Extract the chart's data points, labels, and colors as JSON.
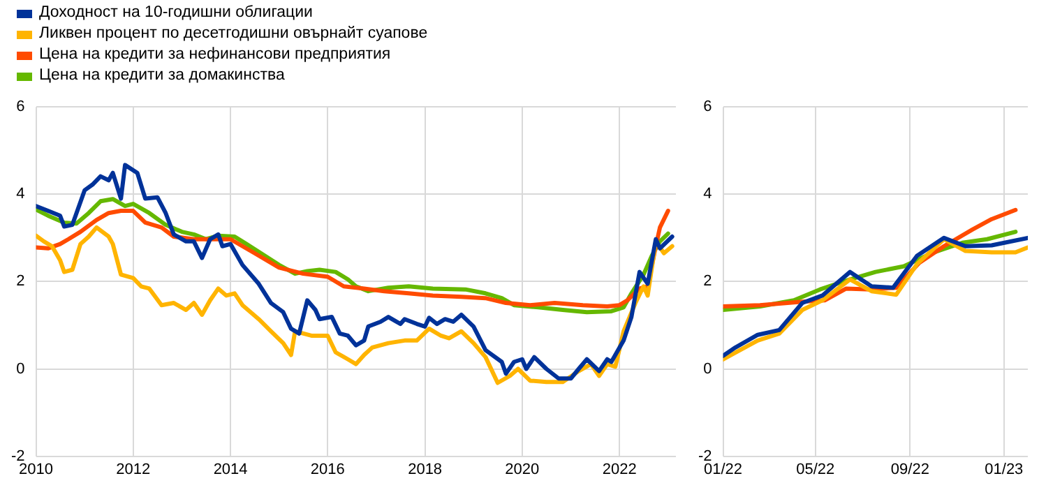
{
  "chart_data": [
    {
      "type": "line",
      "legend": "top left",
      "grid": true,
      "xlim": [
        "2010",
        "2023-03"
      ],
      "xticks": [
        {
          "value": "2010",
          "label": "2010"
        },
        {
          "value": "2012",
          "label": "2012"
        },
        {
          "value": "2014",
          "label": "2014"
        },
        {
          "value": "2016",
          "label": "2016"
        },
        {
          "value": "2018",
          "label": "2018"
        },
        {
          "value": "2020",
          "label": "2020"
        },
        {
          "value": "2022",
          "label": "2022"
        }
      ],
      "ylim": [
        -2,
        6
      ],
      "yticks": [
        -2,
        0,
        2,
        4,
        6
      ],
      "series": [
        {
          "name": "Доходност на 10-годишни облигации",
          "color": "#003299",
          "x": [
            "2010-01",
            "2010-04",
            "2010-07",
            "2010-08",
            "2010-10",
            "2011-01",
            "2011-03",
            "2011-05",
            "2011-07",
            "2011-08",
            "2011-10",
            "2011-11",
            "2012-02",
            "2012-04",
            "2012-07",
            "2012-09",
            "2012-11",
            "2013-02",
            "2013-04",
            "2013-06",
            "2013-08",
            "2013-10",
            "2013-11",
            "2014-01",
            "2014-04",
            "2014-08",
            "2014-11",
            "2015-02",
            "2015-04",
            "2015-06",
            "2015-08",
            "2015-10",
            "2015-11",
            "2016-02",
            "2016-04",
            "2016-06",
            "2016-08",
            "2016-10",
            "2016-11",
            "2017-02",
            "2017-04",
            "2017-06",
            "2017-07",
            "2017-08",
            "2017-11",
            "2018-01",
            "2018-02",
            "2018-04",
            "2018-06",
            "2018-08",
            "2018-10",
            "2019-01",
            "2019-04",
            "2019-08",
            "2019-09",
            "2019-11",
            "2020-01",
            "2020-02",
            "2020-04",
            "2020-07",
            "2020-10",
            "2021-01",
            "2021-03",
            "2021-05",
            "2021-08",
            "2021-10",
            "2021-11",
            "2022-02",
            "2022-04",
            "2022-06",
            "2022-08",
            "2022-10",
            "2022-11",
            "2023-02"
          ],
          "values": [
            3.73,
            3.62,
            3.51,
            3.26,
            3.3,
            4.09,
            4.22,
            4.41,
            4.32,
            4.49,
            3.9,
            4.67,
            4.49,
            3.9,
            3.93,
            3.57,
            3.08,
            2.92,
            2.92,
            2.54,
            2.97,
            3.08,
            2.81,
            2.86,
            2.38,
            1.95,
            1.51,
            1.3,
            0.92,
            0.81,
            1.57,
            1.35,
            1.14,
            1.19,
            0.81,
            0.76,
            0.54,
            0.65,
            0.97,
            1.08,
            1.19,
            1.08,
            1.03,
            1.14,
            1.03,
            0.97,
            1.17,
            1.03,
            1.14,
            1.08,
            1.24,
            0.97,
            0.43,
            0.16,
            -0.11,
            0.16,
            0.22,
            0,
            0.27,
            0,
            -0.22,
            -0.22,
            0,
            0.22,
            -0.05,
            0.22,
            0.16,
            0.65,
            1.19,
            2.22,
            1.95,
            2.97,
            2.76,
            3.03
          ]
        },
        {
          "name": "Ликвен процент по десетгодишни овърнайт суапове",
          "color": "#ffb400",
          "x": [
            "2010-01",
            "2010-03",
            "2010-05",
            "2010-07",
            "2010-08",
            "2010-10",
            "2010-12",
            "2011-02",
            "2011-04",
            "2011-07",
            "2011-08",
            "2011-10",
            "2012-01",
            "2012-03",
            "2012-05",
            "2012-08",
            "2012-11",
            "2013-02",
            "2013-04",
            "2013-06",
            "2013-08",
            "2013-10",
            "2013-12",
            "2014-02",
            "2014-04",
            "2014-08",
            "2014-11",
            "2015-02",
            "2015-04",
            "2015-05",
            "2015-09",
            "2016-01",
            "2016-03",
            "2016-06",
            "2016-08",
            "2016-10",
            "2016-12",
            "2017-04",
            "2017-08",
            "2017-11",
            "2018-02",
            "2018-05",
            "2018-07",
            "2018-10",
            "2019-01",
            "2019-04",
            "2019-07",
            "2019-10",
            "2019-12",
            "2020-03",
            "2020-07",
            "2020-11",
            "2021-03",
            "2021-06",
            "2021-08",
            "2021-10",
            "2021-12",
            "2022-02",
            "2022-05",
            "2022-07",
            "2022-08",
            "2022-10",
            "2022-12",
            "2023-02"
          ],
          "values": [
            3.05,
            2.92,
            2.81,
            2.49,
            2.22,
            2.27,
            2.86,
            3.03,
            3.24,
            3.03,
            2.86,
            2.16,
            2.08,
            1.89,
            1.84,
            1.46,
            1.51,
            1.35,
            1.51,
            1.24,
            1.57,
            1.84,
            1.68,
            1.73,
            1.46,
            1.14,
            0.86,
            0.59,
            0.32,
            0.86,
            0.76,
            0.76,
            0.38,
            0.22,
            0.11,
            0.32,
            0.49,
            0.59,
            0.65,
            0.65,
            0.92,
            0.76,
            0.7,
            0.86,
            0.59,
            0.27,
            -0.32,
            -0.16,
            0,
            -0.27,
            -0.3,
            -0.3,
            -0.05,
            0.11,
            -0.16,
            0.11,
            0.05,
            0.86,
            1.51,
            1.89,
            1.68,
            2.92,
            2.65,
            2.81
          ]
        },
        {
          "name": "Цена на кредити за нефинансови предприятия",
          "color": "#ff4b00",
          "x": [
            "2010-01",
            "2010-04",
            "2010-07",
            "2010-09",
            "2010-12",
            "2011-04",
            "2011-07",
            "2011-10",
            "2012-01",
            "2012-04",
            "2012-08",
            "2012-11",
            "2013-04",
            "2013-09",
            "2014-01",
            "2014-07",
            "2015-01",
            "2015-07",
            "2016-01",
            "2016-05",
            "2016-10",
            "2017-03",
            "2017-09",
            "2018-03",
            "2018-10",
            "2019-04",
            "2019-09",
            "2020-03",
            "2020-09",
            "2021-04",
            "2021-10",
            "2022-01",
            "2022-03",
            "2022-06",
            "2022-08",
            "2022-10",
            "2022-11",
            "2023-01"
          ],
          "values": [
            2.78,
            2.76,
            2.86,
            2.97,
            3.14,
            3.41,
            3.57,
            3.62,
            3.62,
            3.35,
            3.24,
            3.03,
            2.97,
            2.97,
            2.97,
            2.65,
            2.32,
            2.18,
            2.11,
            1.89,
            1.84,
            1.78,
            1.73,
            1.68,
            1.65,
            1.62,
            1.51,
            1.46,
            1.51,
            1.46,
            1.43,
            1.46,
            1.57,
            1.84,
            1.89,
            2.81,
            3.24,
            3.62
          ]
        },
        {
          "name": "Цена на кредити за домакинства",
          "color": "#65b800",
          "x": [
            "2010-01",
            "2010-04",
            "2010-08",
            "2010-11",
            "2011-02",
            "2011-05",
            "2011-08",
            "2011-11",
            "2012-01",
            "2012-05",
            "2012-09",
            "2013-01",
            "2013-04",
            "2013-07",
            "2013-10",
            "2014-02",
            "2014-05",
            "2015-01",
            "2015-05",
            "2015-08",
            "2015-11",
            "2016-03",
            "2016-06",
            "2016-08",
            "2016-11",
            "2017-04",
            "2017-09",
            "2018-03",
            "2018-11",
            "2019-04",
            "2019-08",
            "2019-11",
            "2020-05",
            "2020-11",
            "2021-05",
            "2021-11",
            "2022-02",
            "2022-04",
            "2022-07",
            "2022-09",
            "2022-11",
            "2023-01"
          ],
          "values": [
            3.65,
            3.51,
            3.35,
            3.33,
            3.57,
            3.84,
            3.89,
            3.73,
            3.78,
            3.57,
            3.3,
            3.14,
            3.08,
            2.97,
            3.05,
            3.03,
            2.86,
            2.38,
            2.18,
            2.24,
            2.27,
            2.22,
            2.05,
            1.89,
            1.78,
            1.86,
            1.89,
            1.84,
            1.82,
            1.73,
            1.62,
            1.46,
            1.41,
            1.35,
            1.3,
            1.32,
            1.41,
            1.73,
            2.16,
            2.59,
            2.92,
            3.1
          ]
        }
      ]
    },
    {
      "type": "line",
      "grid": true,
      "xlim": [
        "2022-01-01",
        "2023-02-01"
      ],
      "xticks": [
        {
          "value": "2022-01",
          "label": "01/22"
        },
        {
          "value": "2022-05",
          "label": "05/22"
        },
        {
          "value": "2022-09",
          "label": "09/22"
        },
        {
          "value": "2023-01",
          "label": "01/23"
        }
      ],
      "ylim": [
        -2,
        6
      ],
      "yticks": [
        -2,
        0,
        2,
        4,
        6
      ],
      "series": [
        {
          "color": "#003299",
          "x": [
            "2022-01-01",
            "2022-01-17",
            "2022-02-15",
            "2022-03-15",
            "2022-04-14",
            "2022-05-10",
            "2022-06-15",
            "2022-07-13",
            "2022-08-10",
            "2022-09-10",
            "2022-10-15",
            "2022-11-12",
            "2022-12-16",
            "2023-02-01"
          ],
          "values": [
            0.3,
            0.49,
            0.78,
            0.89,
            1.51,
            1.68,
            2.22,
            1.89,
            1.86,
            2.59,
            3.0,
            2.81,
            2.83,
            3.0
          ]
        },
        {
          "color": "#ffb400",
          "x": [
            "2022-01-01",
            "2022-02-15",
            "2022-03-15",
            "2022-04-14",
            "2022-05-10",
            "2022-06-15",
            "2022-07-13",
            "2022-08-14",
            "2022-09-10",
            "2022-10-15",
            "2022-11-12",
            "2022-12-16",
            "2023-01-16",
            "2023-02-01"
          ],
          "values": [
            0.22,
            0.65,
            0.81,
            1.35,
            1.57,
            2.05,
            1.78,
            1.7,
            2.4,
            2.97,
            2.7,
            2.67,
            2.67,
            2.78
          ]
        },
        {
          "color": "#ff4b00",
          "x": [
            "2022-01-01",
            "2022-02-18",
            "2022-04-14",
            "2022-05-13",
            "2022-06-10",
            "2022-07-13",
            "2022-08-14",
            "2022-09-13",
            "2022-10-15",
            "2022-11-21",
            "2022-12-16",
            "2023-01-16"
          ],
          "values": [
            1.43,
            1.46,
            1.54,
            1.57,
            1.84,
            1.82,
            1.86,
            2.43,
            2.81,
            3.19,
            3.43,
            3.64
          ]
        },
        {
          "color": "#65b800",
          "x": [
            "2022-01-01",
            "2022-02-18",
            "2022-04-03",
            "2022-05-07",
            "2022-06-15",
            "2022-07-18",
            "2022-08-24",
            "2022-09-29",
            "2022-11-08",
            "2022-12-10",
            "2023-01-16"
          ],
          "values": [
            1.35,
            1.43,
            1.57,
            1.82,
            2.05,
            2.22,
            2.35,
            2.65,
            2.89,
            2.97,
            3.14
          ]
        }
      ]
    }
  ]
}
